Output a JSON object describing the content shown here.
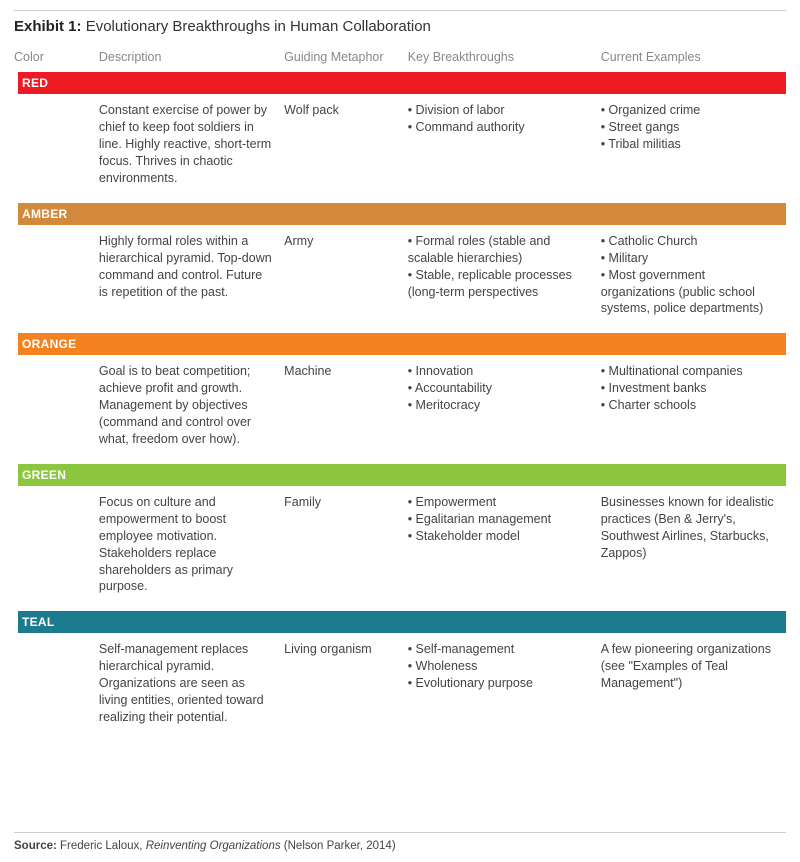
{
  "title_prefix": "Exhibit 1:",
  "title_text": "Evolutionary Breakthroughs in Human Collaboration",
  "columns": [
    "Color",
    "Description",
    "Guiding Metaphor",
    "Key Breakthroughs",
    "Current Examples"
  ],
  "col_widths_pct": [
    11,
    24,
    16,
    25,
    24
  ],
  "rows": [
    {
      "label": "RED",
      "band_color": "#ed1c24",
      "description": "Constant exercise of power by chief to keep foot soldiers in line. Highly reactive, short-term focus. Thrives in chaotic environments.",
      "metaphor": "Wolf pack",
      "breakthroughs": [
        "Division of labor",
        "Command authority"
      ],
      "examples_bullets": [
        "Organized crime",
        "Street gangs",
        "Tribal militias"
      ],
      "examples_text": ""
    },
    {
      "label": "AMBER",
      "band_color": "#d2893c",
      "description": "Highly formal roles within a hierarchical pyramid. Top-down command and control. Future is repetition of the past.",
      "metaphor": "Army",
      "breakthroughs": [
        "Formal roles (stable and scalable hierarchies)",
        "Stable, replicable processes (long-term perspectives"
      ],
      "examples_bullets": [
        "Catholic Church",
        "Military",
        "Most government organizations (public school systems, police departments)"
      ],
      "examples_text": ""
    },
    {
      "label": "ORANGE",
      "band_color": "#f58220",
      "description": "Goal is to beat competition; achieve profit and growth. Management by objectives (command and control over what, freedom over how).",
      "metaphor": "Machine",
      "breakthroughs": [
        "Innovation",
        "Accountability",
        "Meritocracy"
      ],
      "examples_bullets": [
        "Multinational companies",
        "Investment banks",
        "Charter schools"
      ],
      "examples_text": ""
    },
    {
      "label": "GREEN",
      "band_color": "#8cc63f",
      "description": "Focus on culture and empowerment to boost employee motivation. Stakeholders replace shareholders as primary purpose.",
      "metaphor": "Family",
      "breakthroughs": [
        "Empowerment",
        "Egalitarian management",
        "Stakeholder model"
      ],
      "examples_bullets": [],
      "examples_text": "Businesses known for idealistic practices (Ben & Jerry's, Southwest Airlines, Starbucks, Zappos)"
    },
    {
      "label": "TEAL",
      "band_color": "#1c7b8c",
      "description": "Self-management replaces hierarchical pyramid. Organizations are seen as living entities, oriented toward realizing their potential.",
      "metaphor": "Living organism",
      "breakthroughs": [
        "Self-management",
        "Wholeness",
        "Evolutionary purpose"
      ],
      "examples_bullets": [],
      "examples_text": "A few pioneering organizations (see \"Examples of Teal Management\")"
    }
  ],
  "source_label": "Source:",
  "source_author": "Frederic Laloux,",
  "source_title_italic": "Reinventing Organizations",
  "source_suffix": "(Nelson Parker, 2014)"
}
